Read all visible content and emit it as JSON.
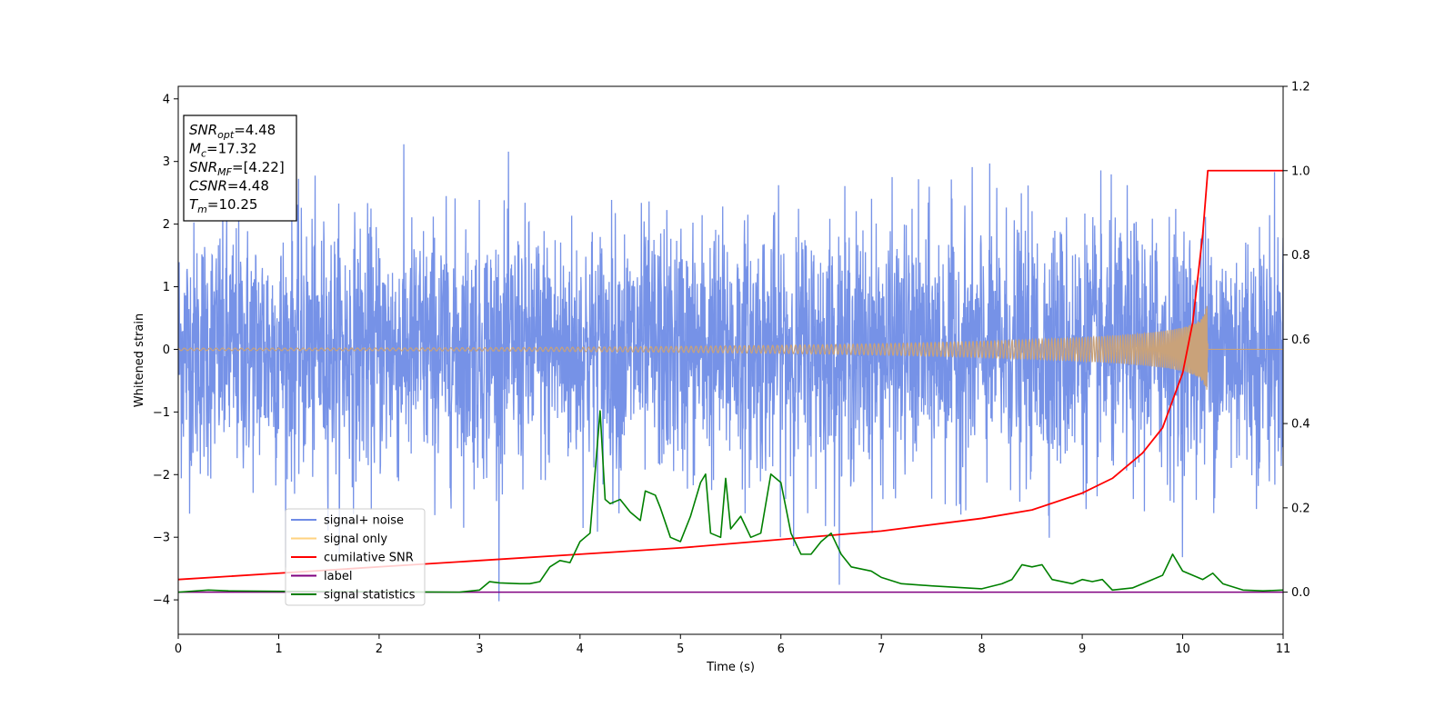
{
  "chart_data": {
    "type": "line",
    "xlabel": "Time (s)",
    "ylabel_left": "Whitened strain",
    "ylabel_right": "",
    "xlim": [
      0,
      11
    ],
    "ylim_left": [
      -4.55,
      4.2
    ],
    "ylim_right": [
      -0.1,
      1.2
    ],
    "xticks": [
      0,
      1,
      2,
      3,
      4,
      5,
      6,
      7,
      8,
      9,
      10,
      11
    ],
    "yticks_left": [
      -4,
      -3,
      -2,
      -1,
      0,
      1,
      2,
      3,
      4
    ],
    "yticks_right": [
      0.0,
      0.2,
      0.4,
      0.6,
      0.8,
      1.0,
      1.2
    ],
    "colors": {
      "signal_noise": "#6f8ce6",
      "signal_only": "#c9a27a",
      "cumulative_snr": "#ff0000",
      "label": "#800080",
      "signal_statistics": "#008000"
    },
    "legend": [
      {
        "name": "signal+ noise",
        "color": "#6f8ce6"
      },
      {
        "name": "signal only",
        "color": "#ffd27f"
      },
      {
        "name": "cumilative SNR",
        "color": "#ff0000"
      },
      {
        "name": "label",
        "color": "#800080"
      },
      {
        "name": "signal statistics",
        "color": "#008000"
      }
    ],
    "legend_location": "lower-left",
    "signal_noise_summary": {
      "noise_sigma": 1.0,
      "range": [
        -4.2,
        3.7
      ]
    },
    "signal_only": {
      "merger_time": 10.25,
      "peak_amplitude": 0.9
    },
    "cumulative_snr": {
      "axis": "right",
      "x": [
        0,
        1,
        2,
        3,
        4,
        5,
        6,
        7,
        8,
        8.5,
        9,
        9.3,
        9.6,
        9.8,
        10,
        10.1,
        10.2,
        10.25,
        11
      ],
      "y": [
        0.03,
        0.045,
        0.06,
        0.075,
        0.09,
        0.105,
        0.125,
        0.145,
        0.175,
        0.195,
        0.235,
        0.27,
        0.33,
        0.39,
        0.52,
        0.64,
        0.85,
        1.0,
        1.0
      ]
    },
    "label_series": {
      "axis": "right",
      "x": [
        0,
        11
      ],
      "y": [
        0.0,
        0.0
      ]
    },
    "signal_statistics": {
      "axis": "right",
      "x": [
        0,
        0.3,
        0.5,
        1,
        2,
        2.8,
        3.0,
        3.1,
        3.2,
        3.4,
        3.5,
        3.6,
        3.7,
        3.8,
        3.9,
        4.0,
        4.05,
        4.1,
        4.2,
        4.25,
        4.3,
        4.4,
        4.5,
        4.6,
        4.65,
        4.75,
        4.8,
        4.9,
        5.0,
        5.1,
        5.2,
        5.25,
        5.3,
        5.4,
        5.45,
        5.5,
        5.6,
        5.7,
        5.8,
        5.9,
        6.0,
        6.1,
        6.2,
        6.3,
        6.4,
        6.5,
        6.6,
        6.7,
        6.9,
        7.0,
        7.2,
        7.5,
        8.0,
        8.2,
        8.3,
        8.4,
        8.5,
        8.6,
        8.7,
        8.9,
        9.0,
        9.1,
        9.2,
        9.3,
        9.5,
        9.6,
        9.7,
        9.8,
        9.9,
        10.0,
        10.2,
        10.3,
        10.4,
        10.6,
        10.8,
        11
      ],
      "y": [
        0.0,
        0.005,
        0.003,
        0.002,
        0.001,
        0.0,
        0.005,
        0.025,
        0.022,
        0.02,
        0.02,
        0.025,
        0.06,
        0.075,
        0.07,
        0.12,
        0.13,
        0.14,
        0.43,
        0.22,
        0.21,
        0.22,
        0.19,
        0.17,
        0.24,
        0.23,
        0.2,
        0.13,
        0.12,
        0.18,
        0.26,
        0.28,
        0.14,
        0.13,
        0.27,
        0.15,
        0.18,
        0.13,
        0.14,
        0.28,
        0.26,
        0.14,
        0.09,
        0.09,
        0.12,
        0.14,
        0.09,
        0.06,
        0.05,
        0.035,
        0.02,
        0.015,
        0.008,
        0.02,
        0.03,
        0.065,
        0.06,
        0.065,
        0.03,
        0.02,
        0.03,
        0.025,
        0.03,
        0.005,
        0.01,
        0.02,
        0.03,
        0.04,
        0.09,
        0.05,
        0.03,
        0.045,
        0.02,
        0.005,
        0.003,
        0.005
      ]
    },
    "annotation_box": {
      "lines": [
        {
          "base": "SNR",
          "sub": "opt",
          "value": "=4.48"
        },
        {
          "base": "M",
          "sub": "c",
          "value": "=17.32"
        },
        {
          "base": "SNR",
          "sub": "MF",
          "value": "=[4.22]"
        },
        {
          "base": "CSNR",
          "sub": "",
          "value": "=4.48"
        },
        {
          "base": "T",
          "sub": "m",
          "value": "=10.25"
        }
      ]
    }
  }
}
